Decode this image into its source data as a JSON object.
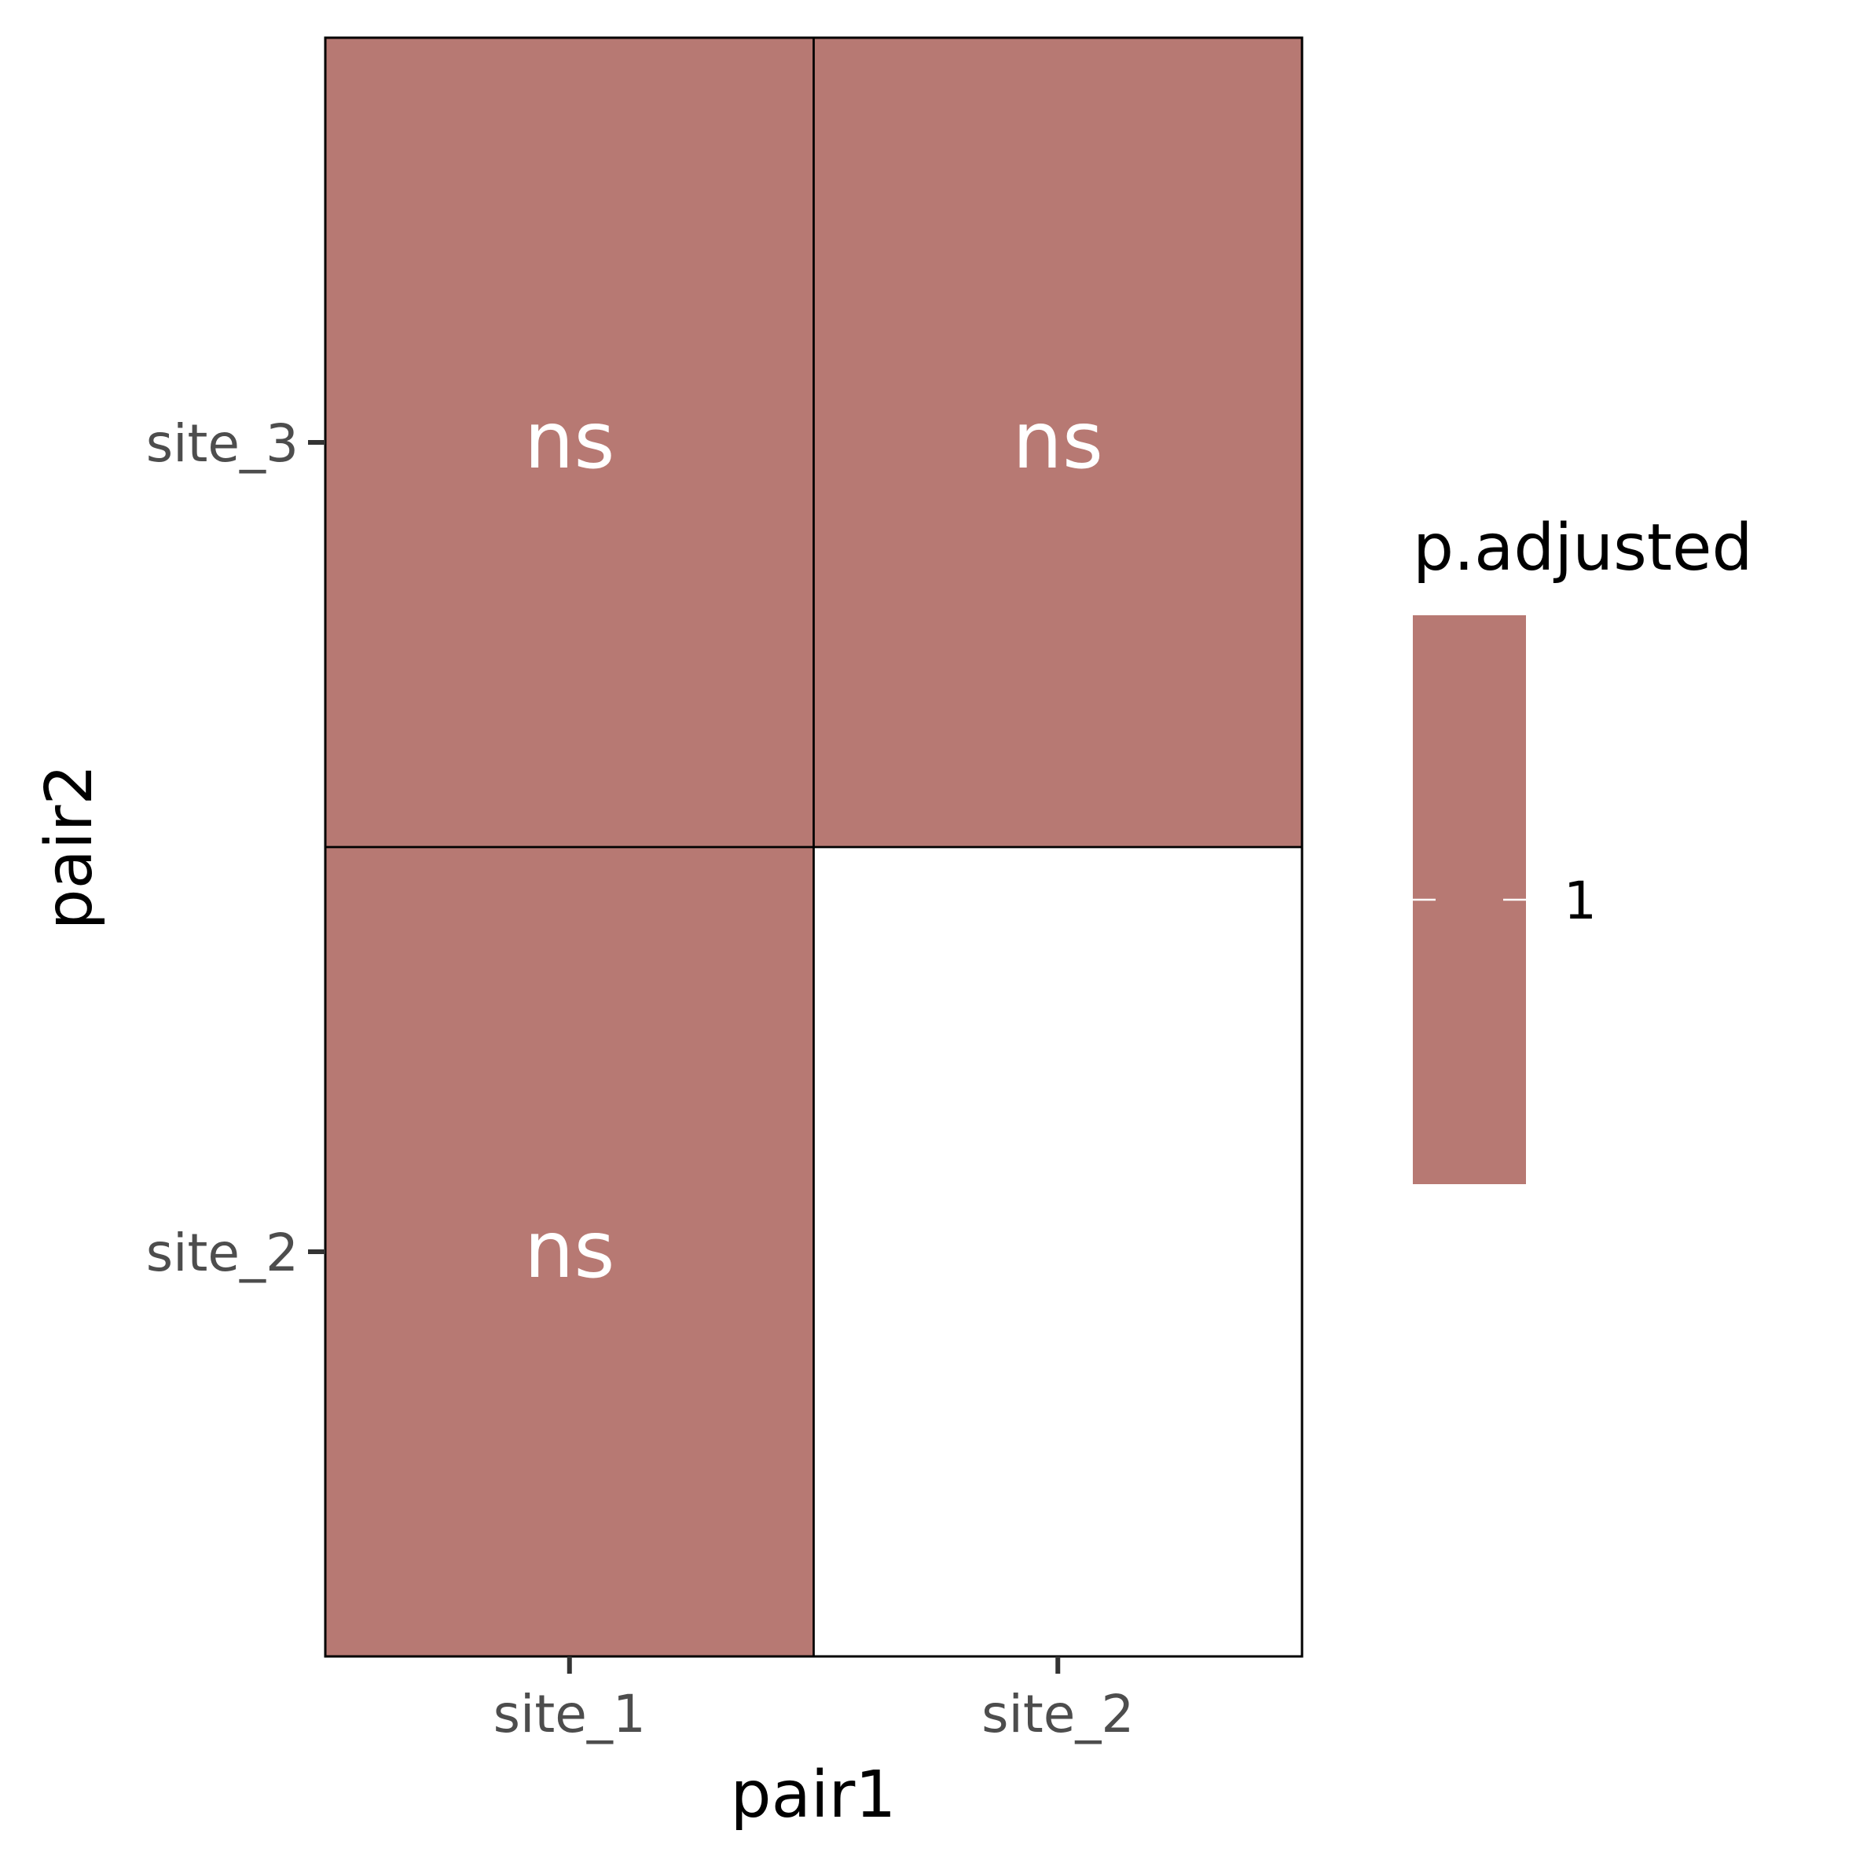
{
  "chart_data": {
    "type": "heatmap",
    "x_categories": [
      "site_1",
      "site_2"
    ],
    "y_categories": [
      "site_2",
      "site_3"
    ],
    "xlabel": "pair1",
    "ylabel": "pair2",
    "cells": [
      {
        "x": "site_1",
        "y": "site_3",
        "p_adjusted": 1,
        "label": "ns"
      },
      {
        "x": "site_2",
        "y": "site_3",
        "p_adjusted": 1,
        "label": "ns"
      },
      {
        "x": "site_1",
        "y": "site_2",
        "p_adjusted": 1,
        "label": "ns"
      }
    ],
    "legend": {
      "title": "p.adjusted",
      "breaks": [
        1
      ],
      "break_labels": [
        "1"
      ],
      "color": "#b77973",
      "position": "right"
    },
    "colors": {
      "fill": "#b77973",
      "empty": "#ffffff",
      "cell_label": "#ffffff",
      "border": "#000000",
      "tick_label": "#4d4d4d"
    },
    "grid": false
  }
}
